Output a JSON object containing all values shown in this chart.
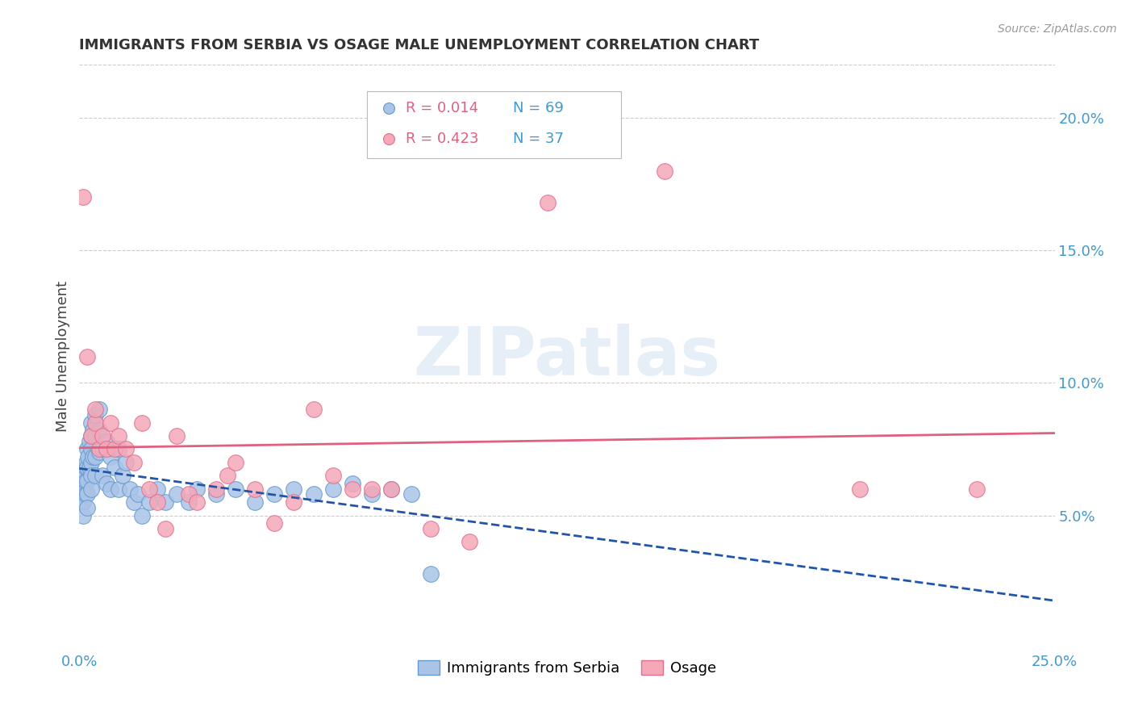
{
  "title": "IMMIGRANTS FROM SERBIA VS OSAGE MALE UNEMPLOYMENT CORRELATION CHART",
  "source": "Source: ZipAtlas.com",
  "ylabel": "Male Unemployment",
  "xlim": [
    0.0,
    0.25
  ],
  "ylim": [
    0.0,
    0.22
  ],
  "xticks": [
    0.0,
    0.05,
    0.1,
    0.15,
    0.2,
    0.25
  ],
  "xticklabels": [
    "0.0%",
    "",
    "",
    "",
    "",
    "25.0%"
  ],
  "yticks_right": [
    0.05,
    0.1,
    0.15,
    0.2
  ],
  "ytick_labels_right": [
    "5.0%",
    "10.0%",
    "15.0%",
    "20.0%"
  ],
  "grid_color": "#cccccc",
  "watermark": "ZIPatlas",
  "serbia_color": "#aac4e8",
  "serbia_edge": "#6699cc",
  "osage_color": "#f4a8b8",
  "osage_edge": "#e07090",
  "serbia_line_color": "#2255aa",
  "osage_line_color": "#e06080",
  "serbia_x": [
    0.0005,
    0.0005,
    0.0008,
    0.001,
    0.001,
    0.001,
    0.001,
    0.0012,
    0.0012,
    0.0015,
    0.0015,
    0.0015,
    0.0018,
    0.002,
    0.002,
    0.002,
    0.002,
    0.002,
    0.0022,
    0.0025,
    0.0025,
    0.003,
    0.003,
    0.003,
    0.003,
    0.003,
    0.003,
    0.0035,
    0.0035,
    0.004,
    0.004,
    0.004,
    0.004,
    0.005,
    0.005,
    0.005,
    0.006,
    0.006,
    0.007,
    0.007,
    0.008,
    0.008,
    0.009,
    0.01,
    0.01,
    0.011,
    0.012,
    0.013,
    0.014,
    0.015,
    0.016,
    0.018,
    0.02,
    0.022,
    0.025,
    0.028,
    0.03,
    0.035,
    0.04,
    0.045,
    0.05,
    0.055,
    0.06,
    0.065,
    0.07,
    0.075,
    0.08,
    0.085,
    0.09
  ],
  "serbia_y": [
    0.06,
    0.055,
    0.058,
    0.062,
    0.058,
    0.055,
    0.05,
    0.065,
    0.06,
    0.068,
    0.063,
    0.058,
    0.07,
    0.075,
    0.068,
    0.063,
    0.058,
    0.053,
    0.072,
    0.078,
    0.068,
    0.085,
    0.08,
    0.075,
    0.07,
    0.065,
    0.06,
    0.082,
    0.072,
    0.088,
    0.08,
    0.072,
    0.065,
    0.09,
    0.082,
    0.074,
    0.075,
    0.065,
    0.078,
    0.062,
    0.072,
    0.06,
    0.068,
    0.075,
    0.06,
    0.065,
    0.07,
    0.06,
    0.055,
    0.058,
    0.05,
    0.055,
    0.06,
    0.055,
    0.058,
    0.055,
    0.06,
    0.058,
    0.06,
    0.055,
    0.058,
    0.06,
    0.058,
    0.06,
    0.062,
    0.058,
    0.06,
    0.058,
    0.028
  ],
  "osage_x": [
    0.001,
    0.002,
    0.003,
    0.004,
    0.004,
    0.005,
    0.006,
    0.007,
    0.008,
    0.009,
    0.01,
    0.012,
    0.014,
    0.016,
    0.018,
    0.02,
    0.022,
    0.025,
    0.028,
    0.03,
    0.035,
    0.038,
    0.04,
    0.045,
    0.05,
    0.055,
    0.06,
    0.065,
    0.07,
    0.075,
    0.08,
    0.09,
    0.1,
    0.12,
    0.15,
    0.2,
    0.23
  ],
  "osage_y": [
    0.17,
    0.11,
    0.08,
    0.085,
    0.09,
    0.075,
    0.08,
    0.075,
    0.085,
    0.075,
    0.08,
    0.075,
    0.07,
    0.085,
    0.06,
    0.055,
    0.045,
    0.08,
    0.058,
    0.055,
    0.06,
    0.065,
    0.07,
    0.06,
    0.047,
    0.055,
    0.09,
    0.065,
    0.06,
    0.06,
    0.06,
    0.045,
    0.04,
    0.168,
    0.18,
    0.06,
    0.06
  ]
}
